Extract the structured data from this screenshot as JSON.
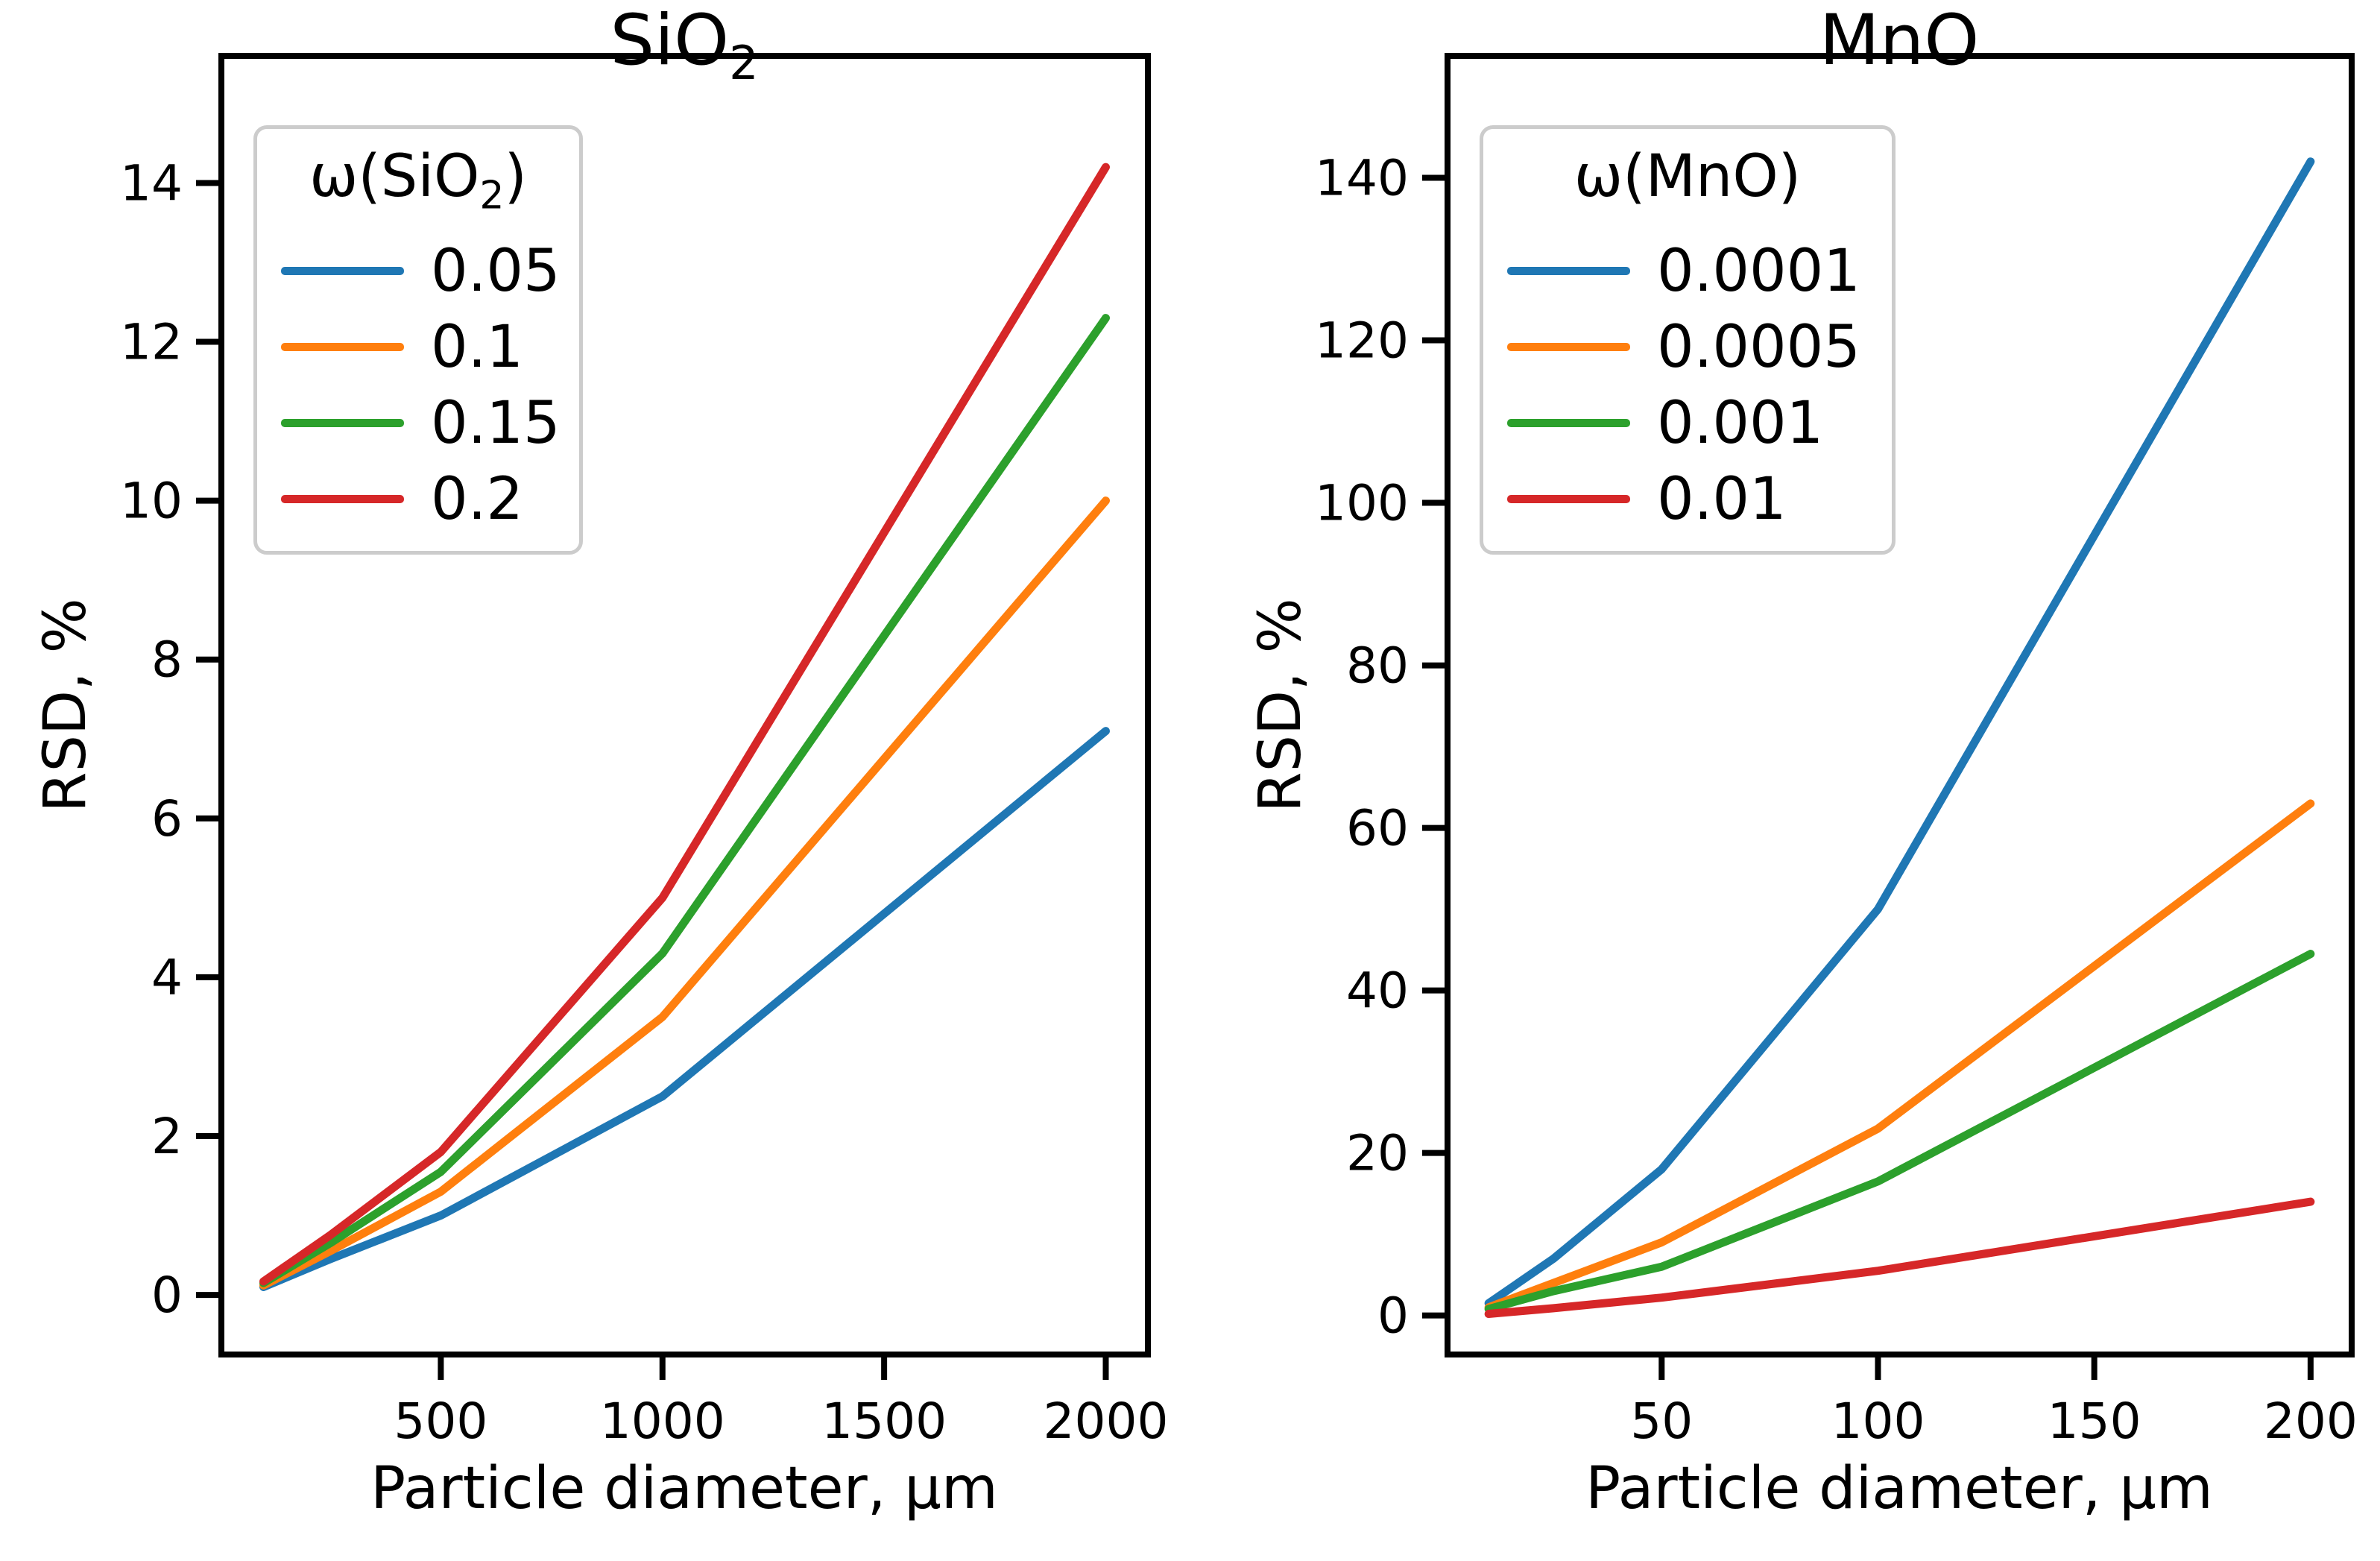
{
  "figure": {
    "background": "#ffffff",
    "text_color": "#000000",
    "spine_color": "#000000",
    "legend_border_color": "#cccccc"
  },
  "chart_data": [
    {
      "type": "line",
      "title_main": "SiO",
      "title_sub": "2",
      "xlabel": "Particle diameter, µm",
      "ylabel": "RSD, %",
      "legend_title_main": "ω(SiO",
      "legend_title_sub": "2",
      "legend_title_end": ")",
      "legend_position": "upper left",
      "grid": false,
      "x": [
        100,
        250,
        500,
        1000,
        2000
      ],
      "xticks": [
        500,
        1000,
        1500,
        2000
      ],
      "yticks": [
        0,
        2,
        4,
        6,
        8,
        10,
        12,
        14
      ],
      "xlim": [
        5,
        2095
      ],
      "ylim": [
        -0.75,
        15.6
      ],
      "series": [
        {
          "name": "0.05",
          "color": "#1f77b4",
          "values": [
            0.1,
            0.45,
            1.0,
            2.5,
            7.1
          ]
        },
        {
          "name": "0.1",
          "color": "#ff7f0e",
          "values": [
            0.12,
            0.55,
            1.3,
            3.5,
            10.0
          ]
        },
        {
          "name": "0.15",
          "color": "#2ca02c",
          "values": [
            0.15,
            0.65,
            1.55,
            4.3,
            12.3
          ]
        },
        {
          "name": "0.2",
          "color": "#d62728",
          "values": [
            0.17,
            0.75,
            1.8,
            5.0,
            14.2
          ]
        }
      ]
    },
    {
      "type": "line",
      "title_main": "MnO",
      "title_sub": "",
      "xlabel": "Particle diameter, µm",
      "ylabel": "RSD, %",
      "legend_title_main": "ω(MnO)",
      "legend_title_sub": "",
      "legend_title_end": "",
      "legend_position": "upper left",
      "grid": false,
      "x": [
        10,
        25,
        50,
        100,
        200
      ],
      "xticks": [
        50,
        100,
        150,
        200
      ],
      "yticks": [
        0,
        20,
        40,
        60,
        80,
        100,
        120,
        140
      ],
      "xlim": [
        0.5,
        209.5
      ],
      "ylim": [
        -4.8,
        155
      ],
      "series": [
        {
          "name": "0.0001",
          "color": "#1f77b4",
          "values": [
            1.5,
            7.0,
            18.0,
            50.0,
            142.0
          ]
        },
        {
          "name": "0.0005",
          "color": "#ff7f0e",
          "values": [
            1.0,
            4.0,
            9.0,
            23.0,
            63.0
          ]
        },
        {
          "name": "0.001",
          "color": "#2ca02c",
          "values": [
            0.8,
            3.0,
            6.0,
            16.5,
            44.5
          ]
        },
        {
          "name": "0.01",
          "color": "#d62728",
          "values": [
            0.2,
            0.9,
            2.2,
            5.5,
            14.0
          ]
        }
      ]
    }
  ]
}
